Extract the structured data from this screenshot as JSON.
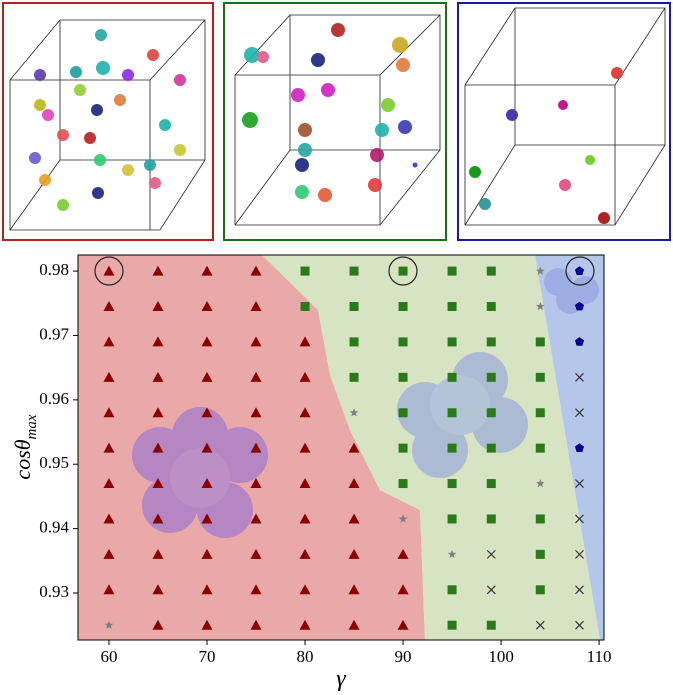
{
  "chart_data": {
    "type": "scatter",
    "xlabel": "γ",
    "ylabel": "cosθ",
    "ylabel_subscript": "max",
    "xlim": [
      56.84,
      110.5
    ],
    "ylim": [
      0.9227,
      0.9825
    ],
    "xticks": [
      60,
      70,
      80,
      90,
      100,
      110
    ],
    "yticks": [
      0.93,
      0.94,
      0.95,
      0.96,
      0.97,
      0.98
    ],
    "series": [
      {
        "marker": "triangle",
        "color": "#8b0000",
        "x": [
          60,
          65,
          70,
          75,
          60,
          65,
          70,
          75,
          60,
          65,
          70,
          75,
          80,
          60,
          65,
          70,
          75,
          80,
          60,
          65,
          70,
          75,
          80,
          60,
          65,
          70,
          75,
          80,
          85,
          60,
          65,
          70,
          75,
          80,
          85,
          60,
          65,
          70,
          75,
          80,
          85,
          60,
          65,
          70,
          75,
          80,
          85,
          90,
          60,
          65,
          70,
          75,
          80,
          85,
          90,
          65,
          70,
          75,
          80,
          85,
          90
        ],
        "y": [
          0.98,
          0.98,
          0.98,
          0.98,
          0.9745,
          0.9745,
          0.9745,
          0.9745,
          0.969,
          0.969,
          0.969,
          0.969,
          0.969,
          0.9635,
          0.9635,
          0.9635,
          0.9635,
          0.9635,
          0.958,
          0.958,
          0.958,
          0.958,
          0.958,
          0.9525,
          0.9525,
          0.9525,
          0.9525,
          0.9525,
          0.9525,
          0.947,
          0.947,
          0.947,
          0.947,
          0.947,
          0.947,
          0.9415,
          0.9415,
          0.9415,
          0.9415,
          0.9415,
          0.9415,
          0.936,
          0.936,
          0.936,
          0.936,
          0.936,
          0.936,
          0.936,
          0.9305,
          0.9305,
          0.9305,
          0.9305,
          0.9305,
          0.9305,
          0.9305,
          0.925,
          0.925,
          0.925,
          0.925,
          0.925,
          0.925
        ]
      },
      {
        "marker": "square",
        "color": "#2a7a1a",
        "x": [
          80,
          85,
          90,
          95,
          99,
          80,
          85,
          90,
          95,
          99,
          85,
          90,
          95,
          99,
          104,
          85,
          90,
          95,
          99,
          104,
          90,
          95,
          99,
          104,
          90,
          95,
          99,
          104,
          90,
          95,
          99,
          95,
          99,
          104,
          104,
          95,
          104,
          95,
          99
        ],
        "y": [
          0.98,
          0.98,
          0.98,
          0.98,
          0.98,
          0.9745,
          0.9745,
          0.9745,
          0.9745,
          0.9745,
          0.969,
          0.969,
          0.969,
          0.969,
          0.969,
          0.9635,
          0.9635,
          0.9635,
          0.9635,
          0.9635,
          0.958,
          0.958,
          0.958,
          0.958,
          0.9525,
          0.9525,
          0.9525,
          0.9525,
          0.947,
          0.947,
          0.947,
          0.9415,
          0.9415,
          0.9415,
          0.936,
          0.9305,
          0.9305,
          0.925,
          0.925
        ]
      },
      {
        "marker": "star",
        "color": "#808080",
        "x": [
          104,
          104,
          85,
          104,
          90,
          95,
          60
        ],
        "y": [
          0.98,
          0.9745,
          0.958,
          0.947,
          0.9415,
          0.936,
          0.925
        ]
      },
      {
        "marker": "pentagon",
        "color": "#00008b",
        "x": [
          108,
          108,
          108,
          108
        ],
        "y": [
          0.98,
          0.9745,
          0.969,
          0.9525
        ]
      },
      {
        "marker": "cross",
        "color": "#333333",
        "x": [
          108,
          108,
          108,
          108,
          99,
          108,
          99,
          108,
          104,
          108
        ],
        "y": [
          0.9635,
          0.958,
          0.947,
          0.9415,
          0.936,
          0.936,
          0.9305,
          0.9305,
          0.925,
          0.925
        ]
      }
    ]
  }
}
